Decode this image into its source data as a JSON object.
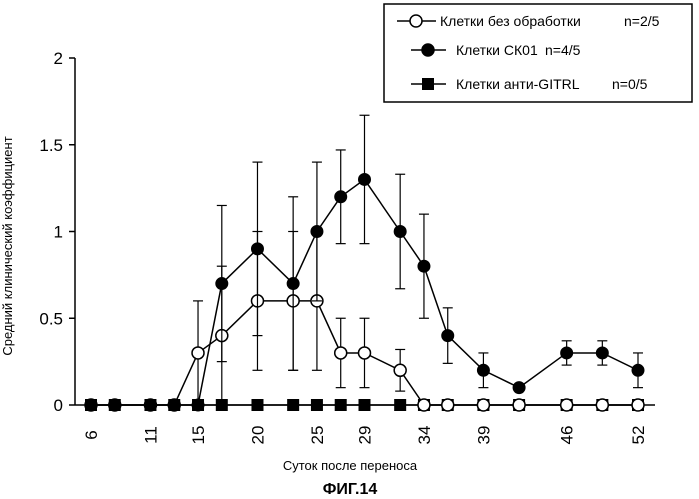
{
  "chart_data": {
    "type": "line",
    "title": "",
    "ylabel": "Средний клинический коэффициент",
    "xlabel": "Суток после переноса",
    "caption": "ФИГ.14",
    "ylim": [
      0,
      2
    ],
    "yticks": [
      "0",
      "0.5",
      "1",
      "1.5",
      "2"
    ],
    "xticks": [
      "6",
      "11",
      "15",
      "20",
      "25",
      "29",
      "34",
      "39",
      "46",
      "52"
    ],
    "legend_position": "top-right",
    "series": [
      {
        "name": "Клетки без обработки",
        "suffix": "n=2/5",
        "marker": "open-circle",
        "x": [
          "6",
          "8",
          "11",
          "13",
          "15",
          "17",
          "20",
          "23",
          "25",
          "27",
          "29",
          "32",
          "34",
          "36",
          "39",
          "42",
          "46",
          "49",
          "52"
        ],
        "values": [
          0,
          0,
          0,
          0,
          0.3,
          0.4,
          0.6,
          0.6,
          0.6,
          0.3,
          0.3,
          0.2,
          0,
          0,
          0,
          0,
          0,
          0,
          0
        ],
        "error": [
          null,
          null,
          null,
          null,
          0.3,
          0.4,
          0.4,
          0.4,
          0.4,
          0.2,
          0.2,
          0.12,
          null,
          null,
          null,
          null,
          null,
          null,
          null
        ]
      },
      {
        "name": "Клетки СК01",
        "suffix": "n=4/5",
        "marker": "filled-circle",
        "x": [
          "6",
          "8",
          "11",
          "13",
          "15",
          "17",
          "20",
          "23",
          "25",
          "27",
          "29",
          "32",
          "34",
          "36",
          "39",
          "42",
          "46",
          "49",
          "52"
        ],
        "values": [
          0,
          0,
          0,
          0,
          0,
          0.7,
          0.9,
          0.7,
          1.0,
          1.2,
          1.3,
          1.0,
          0.8,
          0.4,
          0.2,
          0.1,
          0.3,
          0.3,
          0.2
        ],
        "error": [
          null,
          null,
          null,
          null,
          null,
          0.45,
          0.5,
          0.5,
          0.4,
          0.27,
          0.37,
          0.33,
          0.3,
          0.16,
          0.1,
          null,
          0.07,
          0.07,
          0.1
        ]
      },
      {
        "name": "Клетки анти-GITRL",
        "suffix": "n=0/5",
        "marker": "filled-square",
        "x": [
          "6",
          "8",
          "11",
          "13",
          "15",
          "17",
          "20",
          "23",
          "25",
          "27",
          "29",
          "32",
          "34",
          "36",
          "39",
          "42",
          "46",
          "49",
          "52"
        ],
        "values": [
          0,
          0,
          0,
          0,
          0,
          0,
          0,
          0,
          0,
          0,
          0,
          0,
          0,
          0,
          0,
          0,
          0,
          0,
          0
        ],
        "error": [
          null,
          null,
          null,
          null,
          null,
          null,
          null,
          null,
          null,
          null,
          null,
          null,
          null,
          null,
          null,
          null,
          null,
          null,
          null
        ]
      }
    ]
  }
}
